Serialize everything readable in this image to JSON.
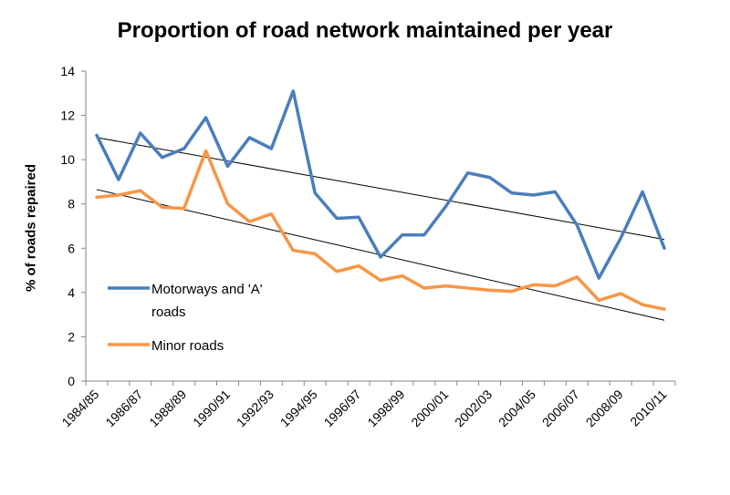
{
  "chart_data": {
    "type": "line",
    "title": "Proportion of road network maintained per year",
    "xlabel": "",
    "ylabel": "% of roads repaired",
    "ylim": [
      0,
      14
    ],
    "yticks": [
      "0",
      "2",
      "4",
      "6",
      "8",
      "10",
      "12",
      "14"
    ],
    "x": [
      "1984/85",
      "1985/86",
      "1986/87",
      "1987/88",
      "1988/89",
      "1989/90",
      "1990/91",
      "1991/92",
      "1992/93",
      "1993/94",
      "1994/95",
      "1995/96",
      "1996/97",
      "1997/98",
      "1998/99",
      "1999/00",
      "2000/01",
      "2001/02",
      "2002/03",
      "2003/04",
      "2004/05",
      "2005/06",
      "2006/07",
      "2007/08",
      "2008/09",
      "2009/10",
      "2010/11"
    ],
    "xtick_labels": [
      "1984/85",
      "1986/87",
      "1988/89",
      "1990/91",
      "1992/93",
      "1994/95",
      "1996/97",
      "1998/99",
      "2000/01",
      "2002/03",
      "2004/05",
      "2006/07",
      "2008/09",
      "2010/11"
    ],
    "series": [
      {
        "name": "Motorways and 'A' roads",
        "color": "#4a7ebb",
        "values": [
          11.1,
          9.1,
          11.2,
          10.1,
          10.5,
          11.9,
          9.7,
          11.0,
          10.5,
          13.1,
          8.5,
          7.35,
          7.4,
          5.6,
          6.6,
          6.6,
          7.9,
          9.4,
          9.2,
          8.5,
          8.4,
          8.55,
          7.05,
          4.65,
          6.45,
          8.55,
          6.0
        ]
      },
      {
        "name": "Minor roads",
        "color": "#f79646",
        "values": [
          8.3,
          8.4,
          8.6,
          7.85,
          7.8,
          10.4,
          8.0,
          7.2,
          7.55,
          5.9,
          5.75,
          4.95,
          5.2,
          4.55,
          4.75,
          4.2,
          4.3,
          4.2,
          4.1,
          4.05,
          4.35,
          4.3,
          4.7,
          3.65,
          3.95,
          3.45,
          3.25
        ]
      }
    ],
    "trendlines": [
      {
        "series": "Motorways and 'A' roads",
        "start": 11.0,
        "end": 6.4,
        "color": "#000000"
      },
      {
        "series": "Minor roads",
        "start": 8.65,
        "end": 2.75,
        "color": "#000000"
      }
    ],
    "grid": false,
    "legend_position": "inside-lower-left"
  }
}
